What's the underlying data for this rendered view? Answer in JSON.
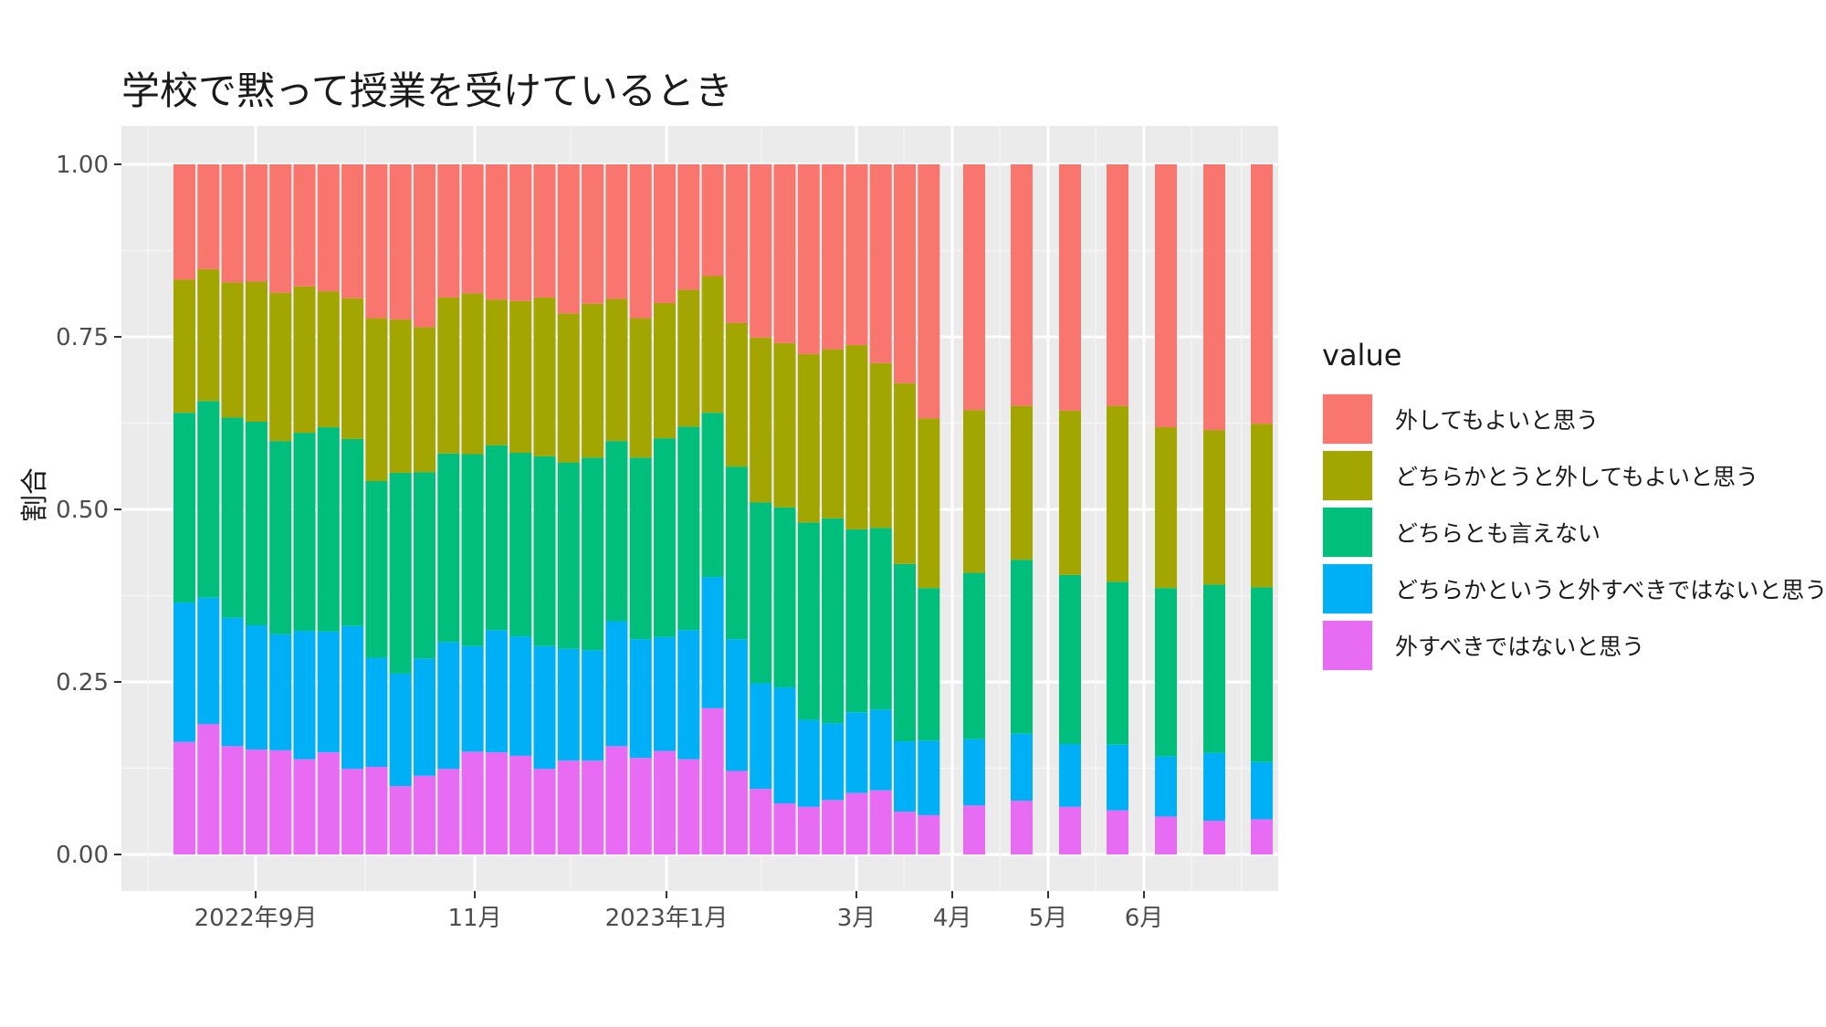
{
  "chart_data": {
    "type": "bar",
    "stacked": true,
    "title": "学校で黙って授業を受けているとき",
    "xlabel": "",
    "ylabel": "割合",
    "ylim": [
      0,
      1
    ],
    "yticks": [
      "0.00",
      "0.25",
      "0.50",
      "0.75",
      "1.00"
    ],
    "xtick_labels": [
      "2022年9月",
      "11月",
      "2023年1月",
      "3月",
      "4月",
      "5月",
      "6月"
    ],
    "legend_title": "value",
    "legend_position": "right",
    "grid": true,
    "series": [
      {
        "name": "外してもよいと思う",
        "color": "#F8766D",
        "values": [
          0.167,
          0.152,
          0.171,
          0.17,
          0.186,
          0.177,
          0.184,
          0.194,
          0.223,
          0.225,
          0.236,
          0.193,
          0.187,
          0.196,
          0.198,
          0.193,
          0.216,
          0.202,
          0.195,
          0.223,
          0.201,
          0.182,
          0.162,
          0.23,
          0.251,
          0.259,
          0.275,
          0.268,
          0.262,
          0.288,
          0.317,
          0.368,
          0.356,
          0.35,
          0.357,
          0.35,
          0.381,
          0.385,
          0.376
        ]
      },
      {
        "name": "どちらかとうと外してもよいと思う",
        "color": "#A3A500",
        "values": [
          0.193,
          0.191,
          0.196,
          0.203,
          0.215,
          0.212,
          0.197,
          0.204,
          0.236,
          0.222,
          0.21,
          0.226,
          0.233,
          0.211,
          0.22,
          0.23,
          0.216,
          0.223,
          0.206,
          0.202,
          0.196,
          0.198,
          0.198,
          0.208,
          0.239,
          0.238,
          0.244,
          0.245,
          0.267,
          0.239,
          0.262,
          0.246,
          0.236,
          0.223,
          0.238,
          0.255,
          0.233,
          0.224,
          0.237
        ]
      },
      {
        "name": "どちらとも言えない",
        "color": "#00BF7D",
        "values": [
          0.275,
          0.285,
          0.29,
          0.295,
          0.28,
          0.287,
          0.296,
          0.271,
          0.256,
          0.291,
          0.27,
          0.273,
          0.278,
          0.268,
          0.266,
          0.275,
          0.27,
          0.279,
          0.261,
          0.263,
          0.288,
          0.295,
          0.238,
          0.25,
          0.262,
          0.261,
          0.286,
          0.297,
          0.265,
          0.263,
          0.257,
          0.221,
          0.241,
          0.252,
          0.245,
          0.236,
          0.244,
          0.244,
          0.253
        ]
      },
      {
        "name": "どちらかというと外すべきではないと思う",
        "color": "#00B0F6",
        "values": [
          0.202,
          0.183,
          0.186,
          0.18,
          0.168,
          0.186,
          0.175,
          0.207,
          0.158,
          0.163,
          0.17,
          0.184,
          0.153,
          0.177,
          0.173,
          0.178,
          0.162,
          0.16,
          0.181,
          0.172,
          0.165,
          0.187,
          0.19,
          0.191,
          0.153,
          0.168,
          0.126,
          0.111,
          0.117,
          0.117,
          0.102,
          0.108,
          0.096,
          0.097,
          0.091,
          0.095,
          0.087,
          0.098,
          0.083
        ]
      },
      {
        "name": "外すべきではないと思う",
        "color": "#E76BF3",
        "values": [
          0.163,
          0.189,
          0.157,
          0.152,
          0.151,
          0.138,
          0.148,
          0.124,
          0.127,
          0.099,
          0.114,
          0.124,
          0.149,
          0.148,
          0.143,
          0.124,
          0.136,
          0.136,
          0.157,
          0.14,
          0.15,
          0.138,
          0.212,
          0.121,
          0.095,
          0.074,
          0.069,
          0.079,
          0.089,
          0.093,
          0.062,
          0.057,
          0.071,
          0.078,
          0.069,
          0.064,
          0.055,
          0.049,
          0.051
        ]
      }
    ]
  }
}
